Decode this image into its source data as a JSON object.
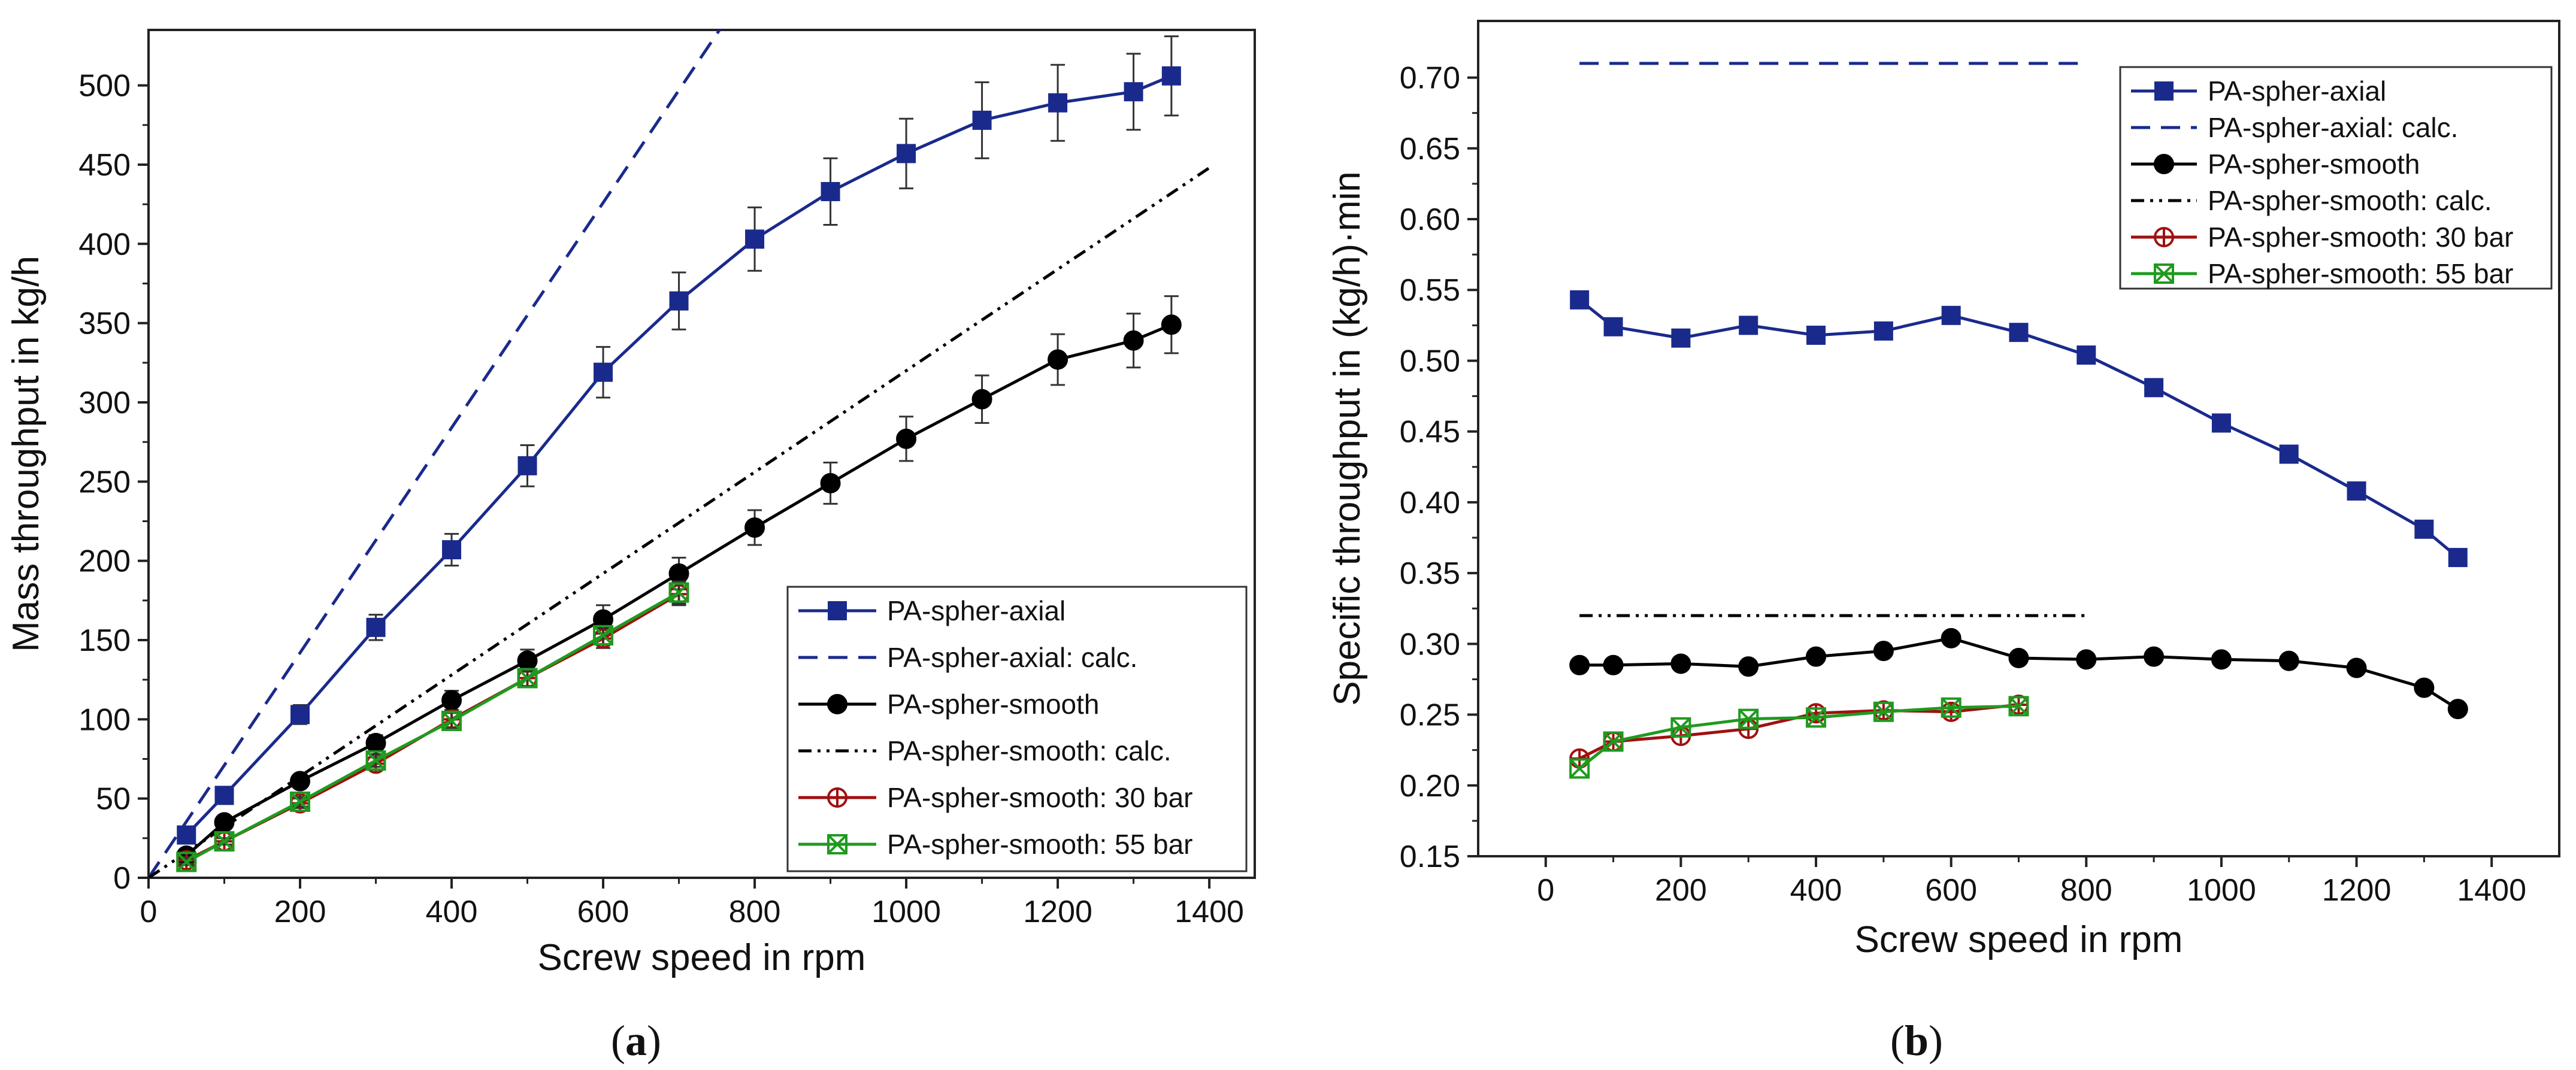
{
  "panels": {
    "a": {
      "caption_open": "(",
      "caption_letter": "a",
      "caption_close": ")"
    },
    "b": {
      "caption_open": "(",
      "caption_letter": "b",
      "caption_close": ")"
    }
  },
  "chart_data": [
    {
      "type": "line",
      "panel": "a",
      "title": "",
      "xlabel": "Screw speed in rpm",
      "ylabel": "Mass throughput in kg/h",
      "xlim": [
        0,
        1460
      ],
      "ylim": [
        0,
        535
      ],
      "xticks": [
        0,
        200,
        400,
        600,
        800,
        1000,
        1200,
        1400
      ],
      "yticks": [
        0,
        50,
        100,
        150,
        200,
        250,
        300,
        350,
        400,
        450,
        500
      ],
      "legend_position": "bottom-right",
      "series": [
        {
          "name": "PA-spher-axial",
          "color": "#1a2a8c",
          "marker": "square",
          "line": "solid",
          "x": [
            50,
            100,
            200,
            300,
            400,
            500,
            600,
            700,
            800,
            900,
            1000,
            1100,
            1200,
            1300,
            1350
          ],
          "y": [
            27,
            52,
            103,
            158,
            207,
            260,
            319,
            364,
            403,
            433,
            457,
            478,
            489,
            496,
            506
          ],
          "err": [
            5,
            5,
            6,
            8,
            10,
            13,
            16,
            18,
            20,
            21,
            22,
            24,
            24,
            24,
            25
          ]
        },
        {
          "name": "PA-spher-axial: calc.",
          "color": "#1a2a8c",
          "marker": "none",
          "line": "dashed",
          "x": [
            0,
            1000
          ],
          "y": [
            0,
            710
          ]
        },
        {
          "name": "PA-spher-smooth",
          "color": "#000000",
          "marker": "circle",
          "line": "solid",
          "x": [
            50,
            100,
            200,
            300,
            400,
            500,
            600,
            700,
            800,
            900,
            1000,
            1100,
            1200,
            1300,
            1350
          ],
          "y": [
            14,
            35,
            61,
            85,
            112,
            137,
            163,
            192,
            221,
            249,
            277,
            302,
            327,
            339,
            349
          ],
          "err": [
            3,
            3,
            4,
            5,
            6,
            7,
            9,
            10,
            11,
            13,
            14,
            15,
            16,
            17,
            18
          ]
        },
        {
          "name": "PA-spher-smooth: calc.",
          "color": "#000000",
          "marker": "none",
          "line": "dashdotdot",
          "x": [
            0,
            1400
          ],
          "y": [
            0,
            448
          ]
        },
        {
          "name": "PA-spher-smooth: 30 bar",
          "color": "#a01010",
          "marker": "circle-cross",
          "line": "solid",
          "x": [
            50,
            100,
            200,
            300,
            400,
            500,
            600,
            700
          ],
          "y": [
            11,
            23,
            47,
            72,
            100,
            126,
            151,
            179
          ],
          "err": [
            2,
            2,
            3,
            4,
            5,
            5,
            6,
            7
          ]
        },
        {
          "name": "PA-spher-smooth: 55 bar",
          "color": "#1f9a1f",
          "marker": "square-x",
          "line": "solid",
          "x": [
            50,
            100,
            200,
            300,
            400,
            500,
            600,
            700
          ],
          "y": [
            10,
            23,
            48,
            74,
            99,
            126,
            153,
            180
          ],
          "err": [
            2,
            2,
            3,
            4,
            5,
            5,
            6,
            7
          ]
        }
      ]
    },
    {
      "type": "line",
      "panel": "b",
      "title": "",
      "xlabel": "Screw speed in rpm",
      "ylabel": "Specific throughput in (kg/h)·min",
      "xlim": [
        -100,
        1500
      ],
      "ylim": [
        0.15,
        0.74
      ],
      "xticks": [
        0,
        200,
        400,
        600,
        800,
        1000,
        1200,
        1400
      ],
      "yticks": [
        0.15,
        0.2,
        0.25,
        0.3,
        0.35,
        0.4,
        0.45,
        0.5,
        0.55,
        0.6,
        0.65,
        0.7
      ],
      "legend_position": "top-right",
      "series": [
        {
          "name": "PA-spher-axial",
          "color": "#1a2a8c",
          "marker": "square",
          "line": "solid",
          "x": [
            50,
            100,
            200,
            300,
            400,
            500,
            600,
            700,
            800,
            900,
            1000,
            1100,
            1200,
            1300,
            1350
          ],
          "y": [
            0.543,
            0.524,
            0.516,
            0.525,
            0.518,
            0.521,
            0.532,
            0.52,
            0.504,
            0.481,
            0.456,
            0.434,
            0.408,
            0.381,
            0.361
          ]
        },
        {
          "name": "PA-spher-axial: calc.",
          "color": "#1a2a8c",
          "marker": "none",
          "line": "dashed",
          "x": [
            50,
            800
          ],
          "y": [
            0.71,
            0.71
          ]
        },
        {
          "name": "PA-spher-smooth",
          "color": "#000000",
          "marker": "circle",
          "line": "solid",
          "x": [
            50,
            100,
            200,
            300,
            400,
            500,
            600,
            700,
            800,
            900,
            1000,
            1100,
            1200,
            1300,
            1350
          ],
          "y": [
            0.285,
            0.285,
            0.286,
            0.284,
            0.291,
            0.295,
            0.304,
            0.29,
            0.289,
            0.291,
            0.289,
            0.288,
            0.283,
            0.269,
            0.254
          ]
        },
        {
          "name": "PA-spher-smooth: calc.",
          "color": "#000000",
          "marker": "none",
          "line": "dashdotdot",
          "x": [
            50,
            800
          ],
          "y": [
            0.32,
            0.32
          ]
        },
        {
          "name": "PA-spher-smooth: 30 bar",
          "color": "#a01010",
          "marker": "circle-cross",
          "line": "solid",
          "x": [
            50,
            100,
            200,
            300,
            400,
            500,
            600,
            700
          ],
          "y": [
            0.219,
            0.231,
            0.235,
            0.24,
            0.251,
            0.253,
            0.252,
            0.257
          ]
        },
        {
          "name": "PA-spher-smooth: 55 bar",
          "color": "#1f9a1f",
          "marker": "square-x",
          "line": "solid",
          "x": [
            50,
            100,
            200,
            300,
            400,
            500,
            600,
            700
          ],
          "y": [
            0.212,
            0.231,
            0.241,
            0.247,
            0.248,
            0.252,
            0.255,
            0.256
          ]
        }
      ]
    }
  ]
}
